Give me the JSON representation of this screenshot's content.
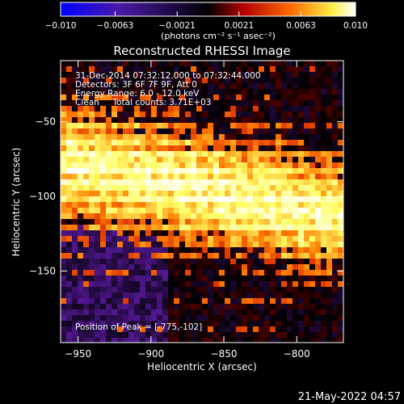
{
  "chart_data": {
    "type": "heatmap",
    "title": "Reconstructed RHESSI Image",
    "xlabel": "Heliocentric X (arcsec)",
    "ylabel": "Heliocentric Y (arcsec)",
    "xlim": [
      -962,
      -768
    ],
    "ylim": [
      -198,
      -9
    ],
    "x_ticks": [
      -950,
      -900,
      -850,
      -800
    ],
    "y_ticks": [
      -50,
      -100,
      -150
    ],
    "grid": false,
    "colorbar": {
      "unit_label": "(photons cm⁻² s⁻¹ asec⁻²)",
      "range": [
        -0.01,
        0.01
      ],
      "tick_values": [
        -0.01,
        -0.0063,
        -0.0021,
        0.0021,
        0.0063,
        0.01
      ],
      "tick_labels": [
        "−0.010",
        "−0.0063",
        "−0.0021",
        "0.0021",
        "0.0063",
        "0.010"
      ],
      "colors": [
        "#0000ff",
        "#5a1aa0",
        "#000000",
        "#c00000",
        "#ff7a00",
        "#ffff66",
        "#ffffff"
      ]
    },
    "annotations": [
      "31-Dec-2014 07:32:12.000 to 07:32:44.000",
      "Detectors: 3F 6F 7F 9F, Att 0",
      "Energy Range: 6.0 - 12.0 keV",
      "Clean     Total counts: 3.71E+03"
    ],
    "peak_label": "Position of Peak = [-775,-102]",
    "peak": [
      -775,
      -102
    ],
    "emission_band": {
      "description_points": [
        [
          -962,
          -78
        ],
        [
          -900,
          -88
        ],
        [
          -850,
          -98
        ],
        [
          -800,
          -108
        ],
        [
          -768,
          -112
        ]
      ],
      "width": 34
    }
  },
  "timestamp": "21-May-2022 04:57"
}
